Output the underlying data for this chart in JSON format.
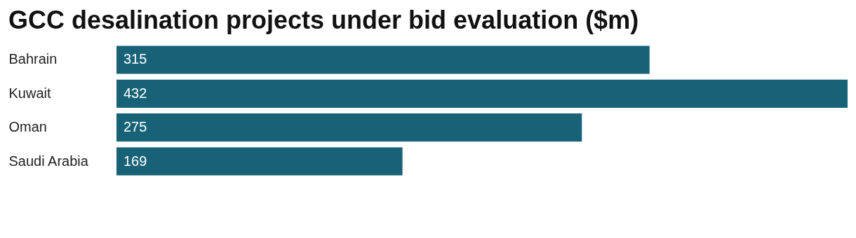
{
  "chart_data": {
    "type": "bar",
    "orientation": "horizontal",
    "title": "GCC desalination projects under bid evaluation ($m)",
    "categories": [
      "Bahrain",
      "Kuwait",
      "Oman",
      "Saudi Arabia"
    ],
    "values": [
      315,
      432,
      275,
      169
    ],
    "color": "#186278",
    "data_labels": true,
    "tick_labels": "y"
  }
}
